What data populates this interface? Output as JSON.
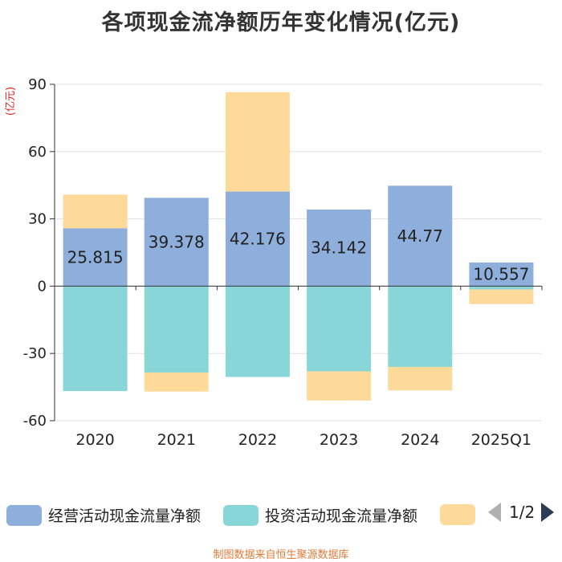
{
  "title": "各项现金流净额历年变化情况(亿元)",
  "source": "制图数据来自恒生聚源数据库",
  "colors": {
    "operating": "#8eaedb",
    "investing": "#88d6d8",
    "financing": "#fdd99a",
    "axis": "#333333",
    "grid": "#e0e0e0",
    "unit": "#e02020"
  },
  "legend": {
    "items": [
      {
        "label": "经营活动现金流量净额",
        "color": "#8eaedb"
      },
      {
        "label": "投资活动现金流量净额",
        "color": "#88d6d8"
      },
      {
        "label": "",
        "color": "#fdd99a"
      }
    ],
    "page": "1/2"
  },
  "chart_data": {
    "type": "bar",
    "stacked": true,
    "title": "各项现金流净额历年变化情况(亿元)",
    "ylabel": "(亿元)",
    "xlabel": "",
    "ylim": [
      -60,
      90
    ],
    "yticks": [
      -60,
      -30,
      0,
      30,
      60,
      90
    ],
    "grid": true,
    "legend_position": "bottom",
    "categories": [
      "2020",
      "2021",
      "2022",
      "2023",
      "2024",
      "2025Q1"
    ],
    "series": [
      {
        "name": "经营活动现金流量净额",
        "values": [
          25.815,
          39.378,
          42.176,
          34.142,
          44.77,
          10.557
        ],
        "data_labels": [
          "25.815",
          "39.378",
          "42.176",
          "34.142",
          "44.77",
          "10.557"
        ]
      },
      {
        "name": "投资活动现金流量净额",
        "values": [
          -46.8,
          -38.5,
          -40.5,
          -38.0,
          -36.0,
          -1.5
        ]
      },
      {
        "values": [
          15.0,
          -8.5,
          44.3,
          -13.0,
          -10.5,
          -6.5
        ]
      }
    ]
  }
}
